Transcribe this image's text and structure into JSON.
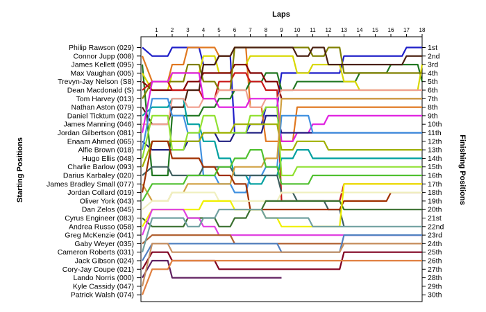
{
  "chart_data": {
    "type": "line",
    "title": "Laps",
    "ylabel_left": "Starting Positions",
    "ylabel_right": "Finishing Positions",
    "laps": [
      1,
      2,
      3,
      4,
      5,
      6,
      7,
      8,
      9,
      10,
      11,
      12,
      13,
      14,
      15,
      16,
      17,
      18
    ],
    "finishing_positions": [
      "1st",
      "2nd",
      "3rd",
      "4th",
      "5th",
      "6th",
      "7th",
      "8th",
      "9th",
      "10th",
      "11th",
      "12th",
      "13th",
      "14th",
      "15th",
      "16th",
      "17th",
      "18th",
      "19th",
      "20th",
      "21st",
      "22nd",
      "23rd",
      "24th",
      "25th",
      "26th",
      "27th",
      "28th",
      "29th",
      "30th"
    ],
    "drivers": [
      {
        "name": "Philip Rawson (029)",
        "color": "#1f1fc8",
        "positions": [
          1,
          2,
          1,
          1,
          3,
          2,
          11,
          10,
          8,
          4,
          4,
          4,
          4,
          2,
          2,
          2,
          2,
          1,
          1
        ]
      },
      {
        "name": "Connor Jupp (008)",
        "color": "#e07820",
        "positions": [
          2,
          5,
          3,
          1,
          1,
          2,
          1,
          8,
          12,
          12,
          8,
          8,
          8,
          8,
          8,
          8,
          8,
          8,
          8
        ]
      },
      {
        "name": "James Kellett (095)",
        "color": "#227722",
        "positions": [
          3,
          16,
          9,
          9,
          8,
          7,
          6,
          5,
          4,
          6,
          5,
          5,
          5,
          5,
          4,
          4,
          3,
          3,
          5
        ]
      },
      {
        "name": "Max Vaughan (005)",
        "color": "#d8d800",
        "positions": [
          4,
          6,
          4,
          4,
          2,
          4,
          3,
          2,
          2,
          2,
          4,
          3,
          3,
          5,
          6,
          6,
          6,
          6,
          3
        ]
      },
      {
        "name": "Trevyn-Jay Nelson (S8)",
        "color": "#800000",
        "positions": [
          5,
          6,
          6,
          5,
          4,
          4,
          3,
          4,
          5,
          7,
          7,
          7,
          7,
          7,
          7,
          7,
          7,
          7,
          7
        ]
      },
      {
        "name": "Dean Macdonald (S)",
        "color": "#c81818",
        "positions": [
          6,
          5,
          6,
          6,
          7,
          5,
          4,
          5,
          6,
          19,
          19,
          19,
          19,
          17,
          17,
          17,
          17,
          17,
          17
        ]
      },
      {
        "name": "Tom Harvey (013)",
        "color": "#808000",
        "positions": [
          7,
          5,
          5,
          3,
          5,
          6,
          1,
          1,
          1,
          1,
          1,
          2,
          1,
          4,
          4,
          4,
          4,
          4,
          4
        ]
      },
      {
        "name": "Nathan Aston (079)",
        "color": "#4a2010",
        "positions": [
          8,
          10,
          8,
          6,
          3,
          2,
          1,
          1,
          1,
          1,
          2,
          1,
          3,
          3,
          3,
          3,
          3,
          2,
          2
        ]
      },
      {
        "name": "Daniel Ticktum (022)",
        "color": "#00a0a0",
        "positions": [
          9,
          8,
          7,
          10,
          12,
          14,
          16,
          17,
          16,
          14,
          13,
          14,
          14,
          14,
          14,
          14,
          14,
          14,
          14
        ]
      },
      {
        "name": "James Manning (046)",
        "color": "#f0a090",
        "positions": [
          10,
          10,
          7,
          8,
          7,
          6,
          6,
          8,
          7,
          6,
          6,
          6,
          6,
          6,
          6,
          6,
          6,
          6,
          6
        ]
      },
      {
        "name": "Jordan Gilbertson (081)",
        "color": "#e020e0",
        "positions": [
          11,
          5,
          4,
          4,
          7,
          8,
          8,
          7,
          7,
          12,
          11,
          10,
          9,
          9,
          9,
          9,
          9,
          9,
          9
        ]
      },
      {
        "name": "Enaam Ahmed (065)",
        "color": "#202080",
        "positions": [
          12,
          13,
          13,
          12,
          11,
          12,
          11,
          11,
          9,
          11,
          11,
          11,
          11,
          11,
          11,
          11,
          11,
          11,
          11
        ]
      },
      {
        "name": "Alfie Brown (018)",
        "color": "#4090e0",
        "positions": [
          13,
          7,
          9,
          11,
          16,
          17,
          18,
          16,
          15,
          9,
          9,
          11,
          11,
          11,
          11,
          11,
          11,
          11,
          11
        ]
      },
      {
        "name": "Hugo Ellis (048)",
        "color": "#90e030",
        "positions": [
          14,
          9,
          13,
          11,
          9,
          11,
          11,
          9,
          8,
          16,
          15,
          15,
          15,
          15,
          15,
          15,
          15,
          15,
          15
        ]
      },
      {
        "name": "Charlie Barlow (093)",
        "color": "#a0b000",
        "positions": [
          15,
          12,
          12,
          12,
          11,
          11,
          10,
          10,
          10,
          13,
          12,
          12,
          13,
          13,
          13,
          13,
          13,
          13,
          13
        ]
      },
      {
        "name": "Darius Karbaley (020)",
        "color": "#406060",
        "positions": [
          16,
          15,
          16,
          16,
          15,
          15,
          16,
          16,
          16,
          18,
          19,
          19,
          20,
          22,
          null,
          null,
          null,
          null,
          null
        ]
      },
      {
        "name": "James Bradley Small (077)",
        "color": "#d0a040",
        "positions": [
          17,
          19,
          18,
          17,
          17,
          17,
          15,
          15,
          14,
          7,
          7,
          7,
          7,
          7,
          7,
          7,
          7,
          7,
          7
        ]
      },
      {
        "name": "Jordan Collard (019)",
        "color": "#a03000",
        "positions": [
          18,
          12,
          14,
          14,
          15,
          16,
          17,
          20,
          20,
          20,
          20,
          20,
          20,
          19,
          19,
          19,
          18,
          18,
          18
        ]
      },
      {
        "name": "Oliver York (043)",
        "color": "#50c030",
        "positions": [
          19,
          17,
          17,
          16,
          16,
          15,
          14,
          13,
          15,
          17,
          17,
          16,
          16,
          16,
          16,
          16,
          16,
          16,
          16
        ]
      },
      {
        "name": "Dan Zelos (045)",
        "color": "#f0f0c0",
        "positions": [
          20,
          19,
          18,
          18,
          18,
          19,
          19,
          19,
          19,
          18,
          18,
          18,
          18,
          18,
          18,
          18,
          18,
          18,
          18
        ]
      },
      {
        "name": "Cyrus Engineer (083)",
        "color": "#3a7030",
        "positions": [
          21,
          22,
          22,
          21,
          21,
          22,
          21,
          20,
          19,
          19,
          19,
          19,
          19,
          20,
          20,
          20,
          20,
          20,
          20
        ]
      },
      {
        "name": "Andrea Russo (058)",
        "color": "#f0f000",
        "positions": [
          22,
          20,
          20,
          20,
          19,
          19,
          20,
          20,
          21,
          22,
          22,
          22,
          22,
          17,
          17,
          17,
          17,
          17,
          17
        ]
      },
      {
        "name": "Greg McKenzie (041)",
        "color": "#e040e0",
        "positions": [
          23,
          20,
          20,
          21,
          22,
          23,
          23,
          23,
          23,
          23,
          23,
          23,
          23,
          23,
          23,
          23,
          23,
          23,
          23
        ]
      },
      {
        "name": "Gaby Weyer (035)",
        "color": "#b06030",
        "positions": [
          24,
          23,
          23,
          23,
          23,
          23,
          24,
          24,
          24,
          24,
          24,
          24,
          24,
          24,
          24,
          24,
          24,
          24,
          24
        ]
      },
      {
        "name": "Cameron Roberts (031)",
        "color": "#70a0a0",
        "positions": [
          25,
          21,
          21,
          22,
          21,
          20,
          20,
          20,
          21,
          21,
          21,
          22,
          22,
          22,
          22,
          22,
          22,
          22,
          22
        ]
      },
      {
        "name": "Jack Gibson (024)",
        "color": "#5080c0",
        "positions": [
          26,
          24,
          24,
          24,
          24,
          24,
          24,
          24,
          24,
          25,
          25,
          25,
          25,
          23,
          23,
          23,
          23,
          23,
          23
        ]
      },
      {
        "name": "Cory-Jay Coupe (021)",
        "color": "#800020",
        "positions": [
          27,
          25,
          26,
          26,
          26,
          27,
          27,
          27,
          27,
          27,
          27,
          27,
          27,
          25,
          25,
          25,
          25,
          25,
          25
        ]
      },
      {
        "name": "Lando Norris (000)",
        "color": "#602060",
        "positions": [
          28,
          26,
          28,
          28,
          28,
          28,
          28,
          28,
          28,
          28,
          null,
          null,
          null,
          null,
          null,
          null,
          null,
          null,
          null
        ]
      },
      {
        "name": "Kyle Cassidy (047)",
        "color": "#c89060",
        "positions": [
          29,
          24,
          25,
          25,
          25,
          25,
          25,
          25,
          25,
          25,
          25,
          25,
          25,
          24,
          24,
          24,
          24,
          24,
          24
        ]
      },
      {
        "name": "Patrick Walsh (074)",
        "color": "#e08040",
        "positions": [
          30,
          27,
          26,
          26,
          26,
          26,
          26,
          26,
          26,
          26,
          26,
          26,
          26,
          26,
          26,
          26,
          26,
          26,
          26
        ]
      }
    ]
  }
}
